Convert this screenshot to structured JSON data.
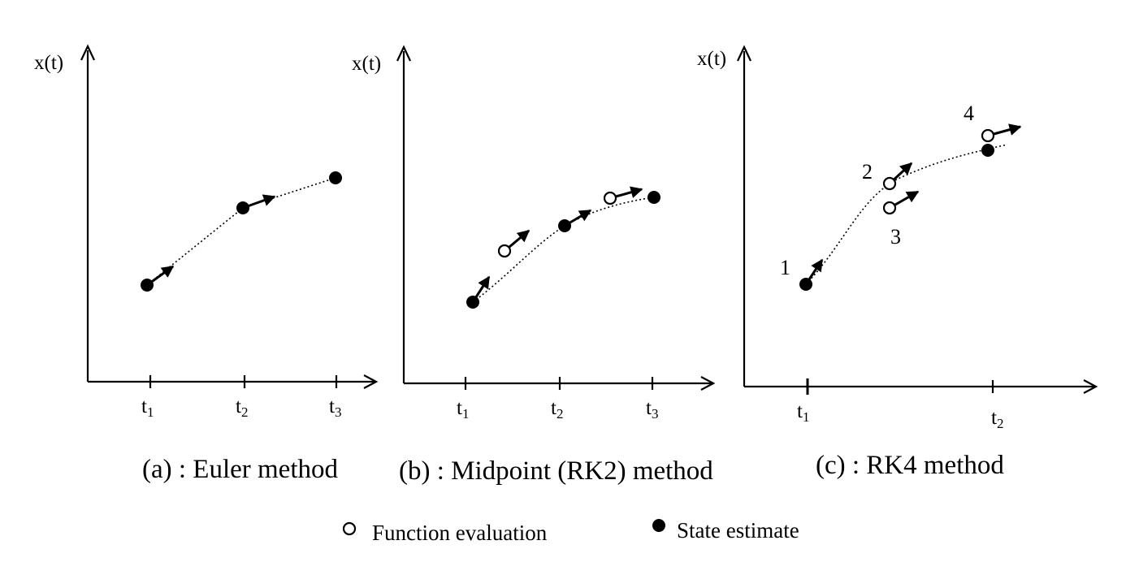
{
  "panels": [
    {
      "y_axis_label": "x(t)",
      "ticks": [
        {
          "base": "t",
          "sub": "1"
        },
        {
          "base": "t",
          "sub": "2"
        },
        {
          "base": "t",
          "sub": "3"
        }
      ],
      "caption": "(a) : Euler method"
    },
    {
      "y_axis_label": "x(t)",
      "ticks": [
        {
          "base": "t",
          "sub": "1"
        },
        {
          "base": "t",
          "sub": "2"
        },
        {
          "base": "t",
          "sub": "3"
        }
      ],
      "caption": "(b) : Midpoint (RK2) method"
    },
    {
      "y_axis_label": "x(t)",
      "ticks": [
        {
          "base": "t",
          "sub": "1"
        },
        {
          "base": "t",
          "sub": "2"
        }
      ],
      "step_labels": [
        "1",
        "2",
        "3",
        "4"
      ],
      "caption": "(c) : RK4 method"
    }
  ],
  "legend": {
    "function_evaluation": "Function evaluation",
    "state_estimate": "State estimate"
  }
}
